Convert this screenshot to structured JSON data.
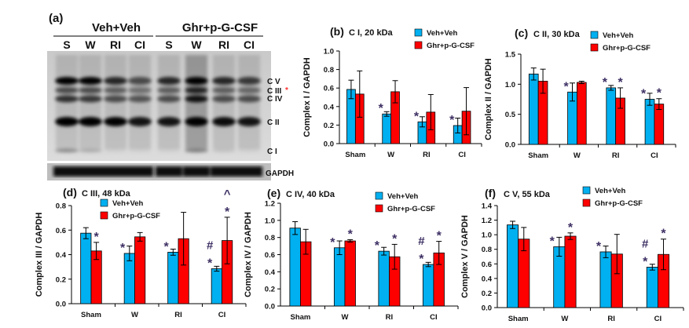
{
  "blot": {
    "panel_label": "(a)",
    "group_labels": [
      "Veh+Veh",
      "Ghr+p-G-CSF"
    ],
    "lane_labels": [
      "S",
      "W",
      "RI",
      "CI",
      "S",
      "W",
      "RI",
      "CI"
    ],
    "band_labels": [
      "C V",
      "C III",
      "C IV",
      "C II",
      "C I"
    ],
    "band_marker": "*",
    "loading_control_label": "GAPDH"
  },
  "colors": {
    "veh": "#00b0f0",
    "ghr": "#ff0000",
    "annotation": "#3d2f63",
    "band_marker": "#ff3030"
  },
  "chart_data": [
    {
      "type": "bar",
      "panel_label": "(b)",
      "title": "C I, 20 kDa",
      "ylabel": "Complex I / GAPDH",
      "categories": [
        "Sham",
        "W",
        "RI",
        "CI"
      ],
      "ylim": [
        0,
        1.0
      ],
      "yticks": [
        0,
        0.2,
        0.4,
        0.6,
        0.8,
        1.0
      ],
      "legend_position": "top-right",
      "series": [
        {
          "name": "Veh+Veh",
          "values": [
            0.585,
            0.32,
            0.235,
            0.195
          ],
          "errors": [
            0.1,
            0.025,
            0.055,
            0.08
          ],
          "annotations": [
            "",
            "*",
            "*",
            "*"
          ]
        },
        {
          "name": "Ghr+p-G-CSF",
          "values": [
            0.535,
            0.56,
            0.34,
            0.35
          ],
          "errors": [
            0.25,
            0.12,
            0.19,
            0.255
          ],
          "annotations": [
            "",
            "",
            "",
            ""
          ]
        }
      ]
    },
    {
      "type": "bar",
      "panel_label": "(c)",
      "title": "C II, 30 kDa",
      "ylabel": "Complex II / GAPDH",
      "categories": [
        "Sham",
        "W",
        "RI",
        "CI"
      ],
      "ylim": [
        0,
        1.5
      ],
      "yticks": [
        0,
        0.5,
        1.0,
        1.5
      ],
      "legend_position": "top-right",
      "series": [
        {
          "name": "Veh+Veh",
          "values": [
            1.17,
            0.87,
            0.94,
            0.75
          ],
          "errors": [
            0.1,
            0.15,
            0.04,
            0.1
          ],
          "annotations": [
            "",
            "*",
            "*",
            "*"
          ]
        },
        {
          "name": "Ghr+p-G-CSF",
          "values": [
            1.05,
            1.03,
            0.77,
            0.67
          ],
          "errors": [
            0.2,
            0.02,
            0.17,
            0.09
          ],
          "annotations": [
            "",
            "",
            "*",
            "*"
          ]
        }
      ]
    },
    {
      "type": "bar",
      "panel_label": "(d)",
      "title": "C III, 48 kDa",
      "ylabel": "Complex III / GAPDH",
      "categories": [
        "Sham",
        "W",
        "RI",
        "CI"
      ],
      "ylim": [
        0,
        0.8
      ],
      "yticks": [
        0,
        0.2,
        0.4,
        0.6,
        0.8
      ],
      "legend_position": "top-center",
      "series": [
        {
          "name": "Veh+Veh",
          "values": [
            0.575,
            0.41,
            0.42,
            0.285
          ],
          "errors": [
            0.045,
            0.06,
            0.025,
            0.02
          ],
          "annotations": [
            "",
            "*",
            "*",
            "* #"
          ]
        },
        {
          "name": "Ghr+p-G-CSF",
          "values": [
            0.43,
            0.545,
            0.53,
            0.515
          ],
          "errors": [
            0.07,
            0.035,
            0.215,
            0.19
          ],
          "annotations": [
            "*",
            "",
            "",
            "* ^"
          ]
        }
      ]
    },
    {
      "type": "bar",
      "panel_label": "(e)",
      "title": "C IV, 40 kDa",
      "ylabel": "Complex IV / GAPDH",
      "categories": [
        "Sham",
        "W",
        "RI",
        "CI"
      ],
      "ylim": [
        0,
        1.2
      ],
      "yticks": [
        0,
        0.2,
        0.4,
        0.6,
        0.8,
        1.0,
        1.2
      ],
      "legend_position": "top-right",
      "series": [
        {
          "name": "Veh+Veh",
          "values": [
            0.91,
            0.68,
            0.64,
            0.485
          ],
          "errors": [
            0.075,
            0.08,
            0.045,
            0.025
          ],
          "annotations": [
            "",
            "*",
            "*",
            "* #"
          ]
        },
        {
          "name": "Ghr+p-G-CSF",
          "values": [
            0.75,
            0.76,
            0.575,
            0.62
          ],
          "errors": [
            0.145,
            0.015,
            0.145,
            0.135
          ],
          "annotations": [
            "",
            "*",
            "*",
            "*"
          ]
        }
      ]
    },
    {
      "type": "bar",
      "panel_label": "(f)",
      "title": "C V, 55 kDa",
      "ylabel": "Complex V / GAPDH",
      "categories": [
        "Sham",
        "W",
        "RI",
        "CI"
      ],
      "ylim": [
        0,
        1.4
      ],
      "yticks": [
        0,
        0.2,
        0.4,
        0.6,
        0.8,
        1.0,
        1.2,
        1.4
      ],
      "legend_position": "top-right",
      "series": [
        {
          "name": "Veh+Veh",
          "values": [
            1.135,
            0.835,
            0.765,
            0.555
          ],
          "errors": [
            0.05,
            0.13,
            0.08,
            0.04
          ],
          "annotations": [
            "",
            "*",
            "*",
            "* #"
          ]
        },
        {
          "name": "Ghr+p-G-CSF",
          "values": [
            0.94,
            0.98,
            0.735,
            0.73
          ],
          "errors": [
            0.16,
            0.045,
            0.27,
            0.21
          ],
          "annotations": [
            "",
            "*",
            "",
            "*"
          ]
        }
      ]
    }
  ]
}
